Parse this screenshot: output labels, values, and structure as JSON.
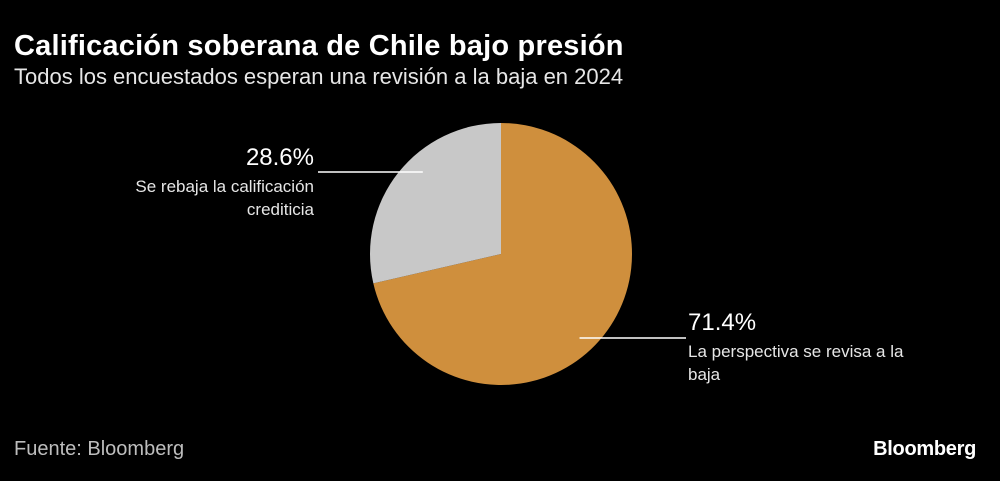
{
  "header": {
    "title": "Calificación soberana de Chile bajo presión",
    "subtitle": "Todos los encuestados esperan una revisión a la baja en 2024"
  },
  "footer": {
    "source": "Fuente: Bloomberg",
    "brand": "Bloomberg"
  },
  "chart_data": {
    "type": "pie",
    "title": "Calificación soberana de Chile bajo presión",
    "subtitle": "Todos los encuestados esperan una revisión a la baja en 2024",
    "slices": [
      {
        "label_lines": [
          "La perspectiva se revisa a la",
          "baja"
        ],
        "value": 71.4,
        "value_label": "71.4%",
        "color": "#cf8f3d"
      },
      {
        "label_lines": [
          "Se rebaja la calificación",
          "crediticia"
        ],
        "value": 28.6,
        "value_label": "28.6%",
        "color": "#c8c8c8"
      }
    ],
    "start": "12 o'clock",
    "direction": "clockwise"
  }
}
